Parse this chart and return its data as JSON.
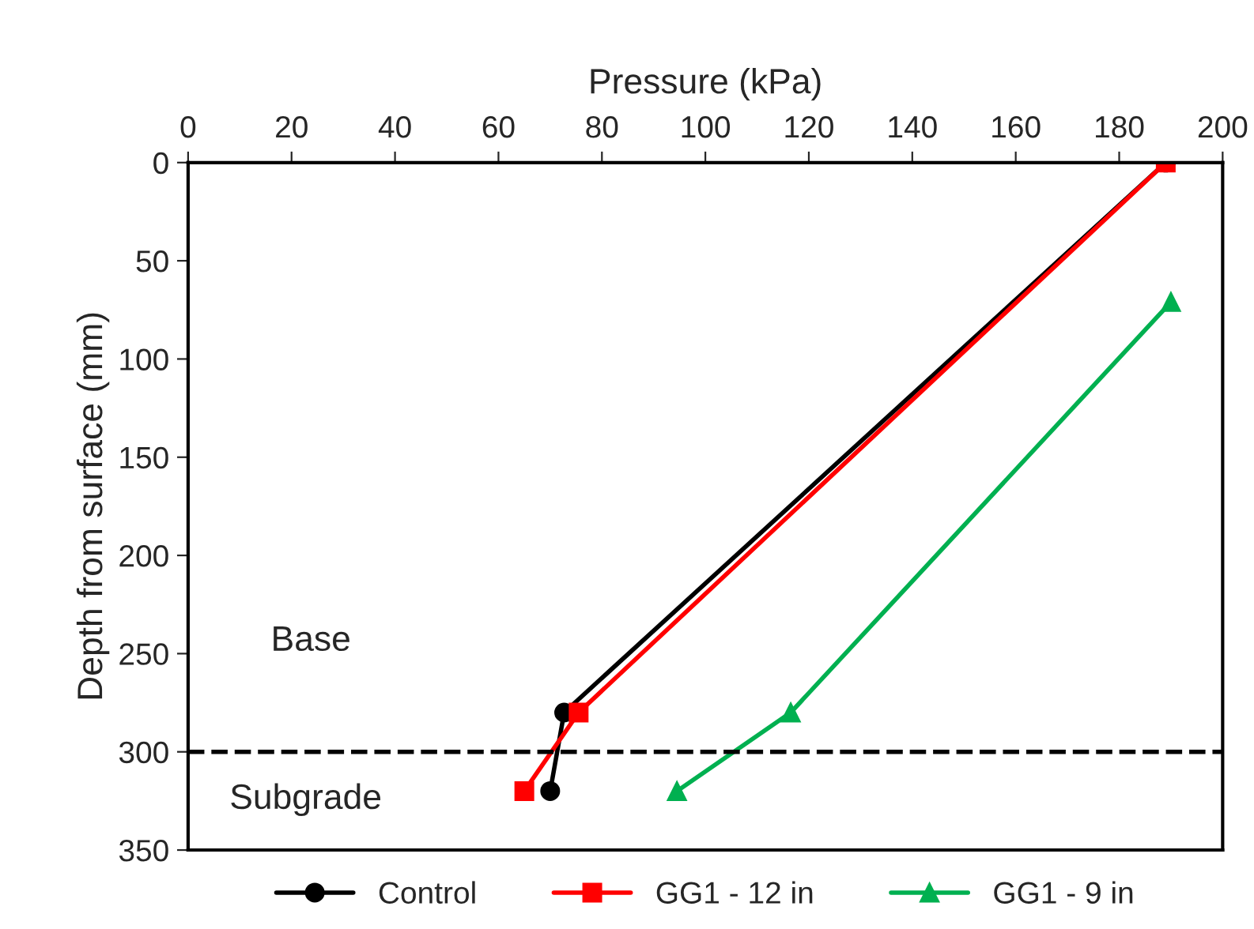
{
  "chart_data": {
    "type": "line",
    "xlabel": "Pressure (kPa)",
    "ylabel": "Depth from surface (mm)",
    "xlim": [
      0,
      200
    ],
    "xticks": [
      0,
      20,
      40,
      60,
      80,
      100,
      120,
      140,
      160,
      180,
      200
    ],
    "ylim": [
      350,
      0
    ],
    "yticks": [
      0,
      50,
      100,
      150,
      200,
      250,
      300,
      350
    ],
    "series": [
      {
        "name": "Control",
        "color": "#000000",
        "marker": "circle",
        "x": [
          189,
          72.7,
          70
        ],
        "values": [
          0,
          280,
          320
        ]
      },
      {
        "name": "GG1 - 12 in",
        "color": "#ff0000",
        "marker": "square",
        "x": [
          189,
          75.5,
          65
        ],
        "values": [
          0,
          280,
          320
        ]
      },
      {
        "name": "GG1 - 9 in",
        "color": "#00b050",
        "marker": "triangle",
        "x": [
          190,
          116.5,
          94.5
        ],
        "values": [
          71,
          280,
          320
        ]
      }
    ],
    "ref_lines": [
      {
        "axis": "y",
        "value": 300,
        "color": "#000000",
        "line_style": "dashed"
      }
    ],
    "annotations": [
      "Base",
      "Subgrade"
    ],
    "legend": "bottom",
    "grid": false
  }
}
